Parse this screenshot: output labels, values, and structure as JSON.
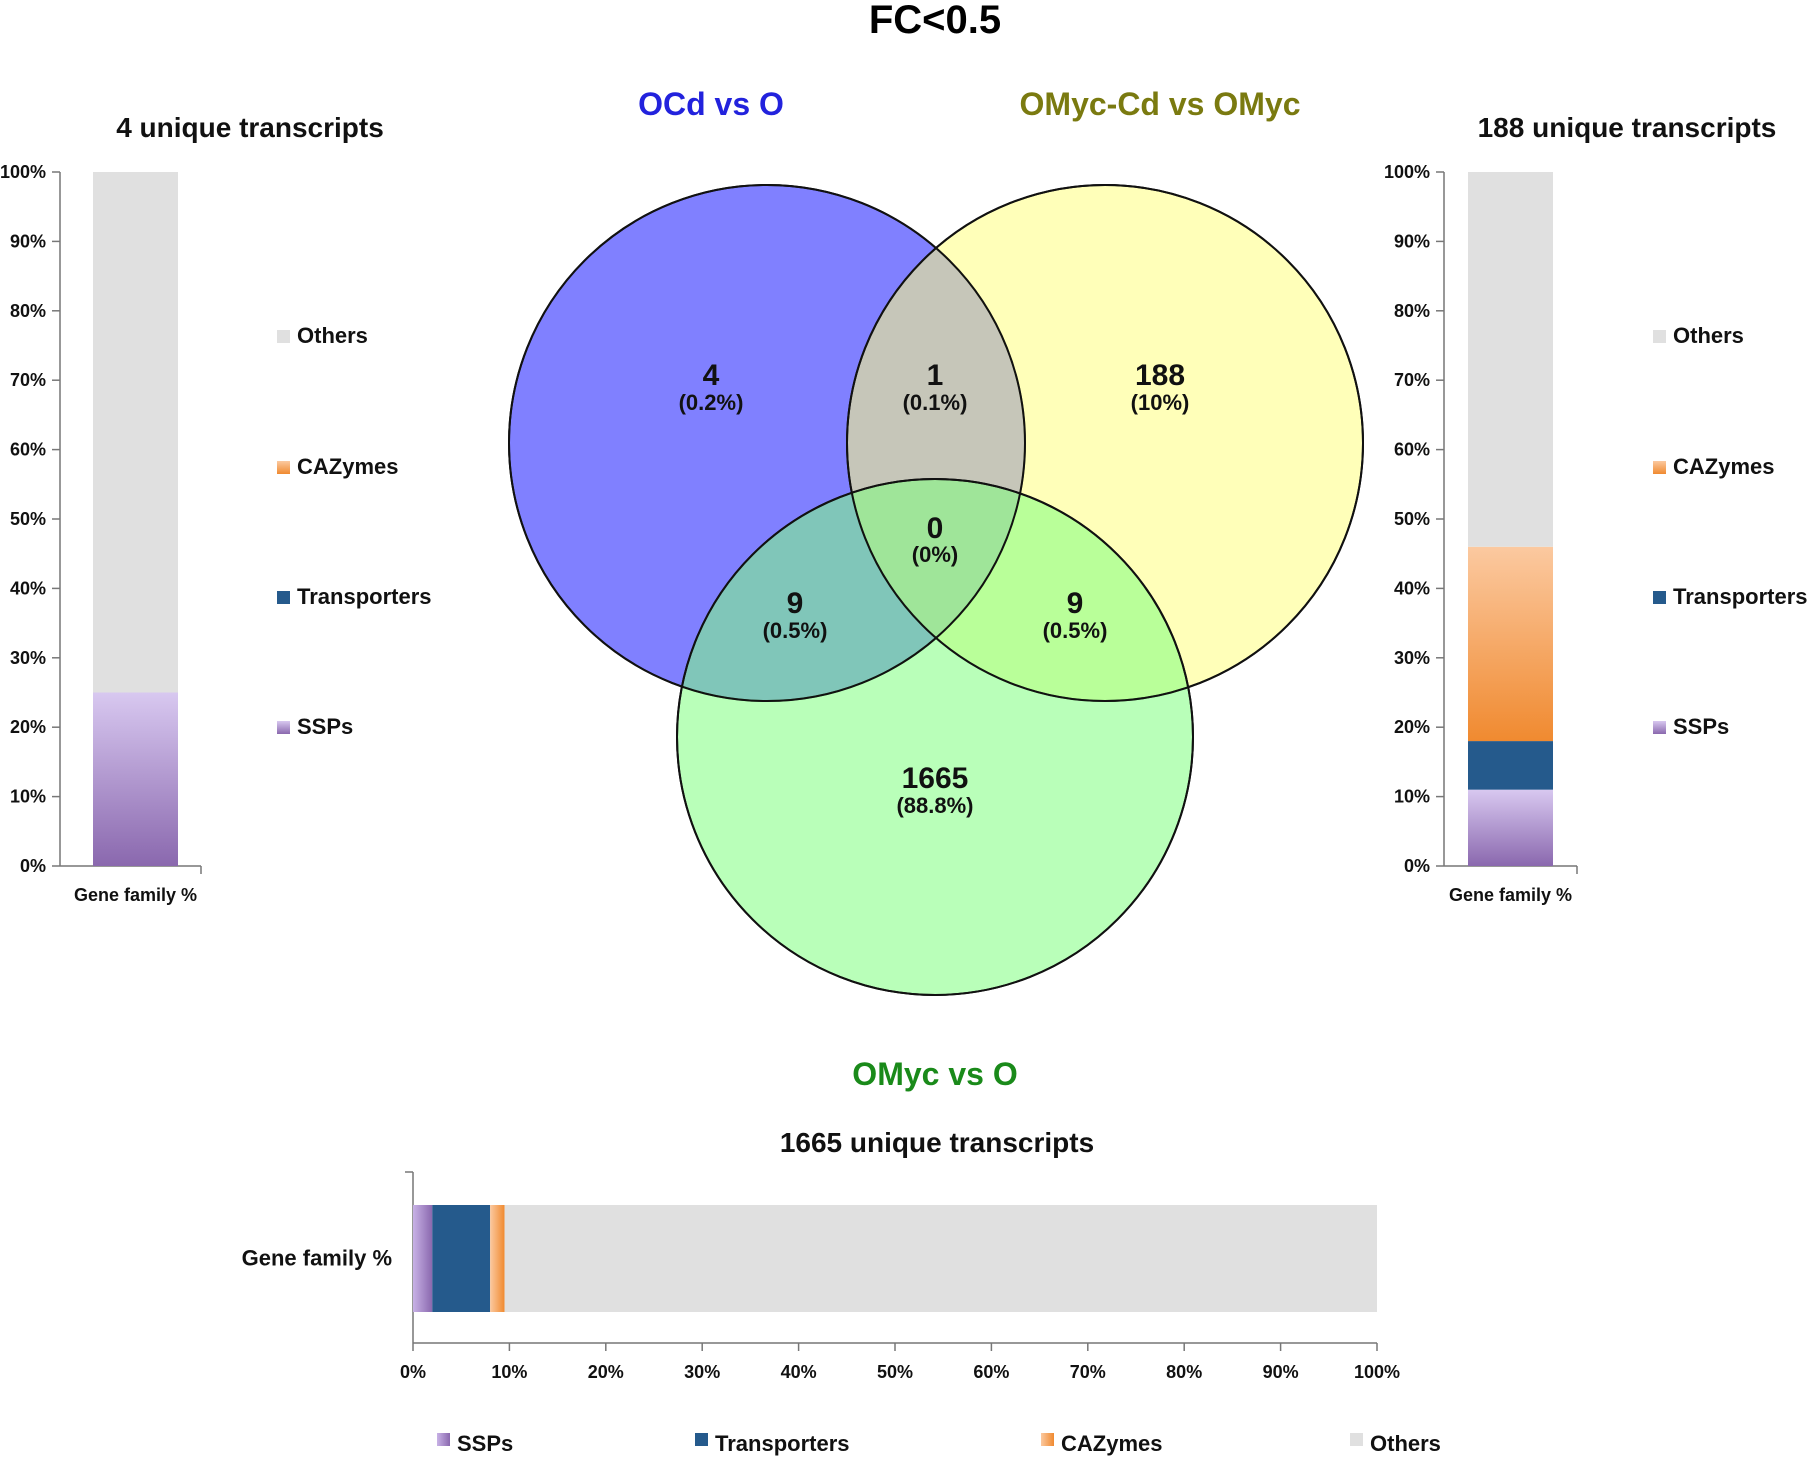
{
  "title": "FC<0.5",
  "colors": {
    "SSPs": "#8e6fb3",
    "Transporters": "#255a8c",
    "CAZymes": "#f29a47",
    "Others": "#e0e0e0"
  },
  "venn": {
    "sets": [
      {
        "key": "A",
        "label": "OCd vs O",
        "label_color": "#2222dd",
        "fill": "#8080ff"
      },
      {
        "key": "B",
        "label": "OMyc-Cd vs OMyc",
        "label_color": "#7a7a10",
        "fill": "#ffff80"
      },
      {
        "key": "C",
        "label": "OMyc vs O",
        "label_color": "#1a8a1a",
        "fill": "#80ff80"
      }
    ],
    "regions": {
      "A_only": {
        "count": "4",
        "pct": "(0.2%)"
      },
      "AB": {
        "count": "1",
        "pct": "(0.1%)"
      },
      "B_only": {
        "count": "188",
        "pct": "(10%)"
      },
      "ABC": {
        "count": "0",
        "pct": "(0%)"
      },
      "AC": {
        "count": "9",
        "pct": "(0.5%)"
      },
      "BC": {
        "count": "9",
        "pct": "(0.5%)"
      },
      "C_only": {
        "count": "1665",
        "pct": "(88.8%)"
      }
    }
  },
  "chart_data": [
    {
      "type": "bar",
      "stacked": true,
      "orientation": "vertical",
      "title": "4 unique transcripts",
      "categories": [
        "Gene family %"
      ],
      "series": [
        {
          "name": "SSPs",
          "values": [
            25
          ]
        },
        {
          "name": "Transporters",
          "values": [
            0
          ]
        },
        {
          "name": "CAZymes",
          "values": [
            0
          ]
        },
        {
          "name": "Others",
          "values": [
            75
          ]
        }
      ],
      "ylim": [
        0,
        100
      ],
      "ticks": [
        "0%",
        "10%",
        "20%",
        "30%",
        "40%",
        "50%",
        "60%",
        "70%",
        "80%",
        "90%",
        "100%"
      ],
      "legend": [
        "Others",
        "CAZymes",
        "Transporters",
        "SSPs"
      ]
    },
    {
      "type": "bar",
      "stacked": true,
      "orientation": "vertical",
      "title": "188 unique transcripts",
      "categories": [
        "Gene family %"
      ],
      "series": [
        {
          "name": "SSPs",
          "values": [
            11
          ]
        },
        {
          "name": "Transporters",
          "values": [
            7
          ]
        },
        {
          "name": "CAZymes",
          "values": [
            28
          ]
        },
        {
          "name": "Others",
          "values": [
            54
          ]
        }
      ],
      "ylim": [
        0,
        100
      ],
      "ticks": [
        "0%",
        "10%",
        "20%",
        "30%",
        "40%",
        "50%",
        "60%",
        "70%",
        "80%",
        "90%",
        "100%"
      ],
      "legend": [
        "Others",
        "CAZymes",
        "Transporters",
        "SSPs"
      ]
    },
    {
      "type": "bar",
      "stacked": true,
      "orientation": "horizontal",
      "title": "1665 unique transcripts",
      "categories": [
        "Gene family %"
      ],
      "series": [
        {
          "name": "SSPs",
          "values": [
            2
          ]
        },
        {
          "name": "Transporters",
          "values": [
            6
          ]
        },
        {
          "name": "CAZymes",
          "values": [
            1.5
          ]
        },
        {
          "name": "Others",
          "values": [
            90.5
          ]
        }
      ],
      "xlim": [
        0,
        100
      ],
      "ticks": [
        "0%",
        "10%",
        "20%",
        "30%",
        "40%",
        "50%",
        "60%",
        "70%",
        "80%",
        "90%",
        "100%"
      ],
      "legend": [
        "SSPs",
        "Transporters",
        "CAZymes",
        "Others"
      ]
    }
  ]
}
